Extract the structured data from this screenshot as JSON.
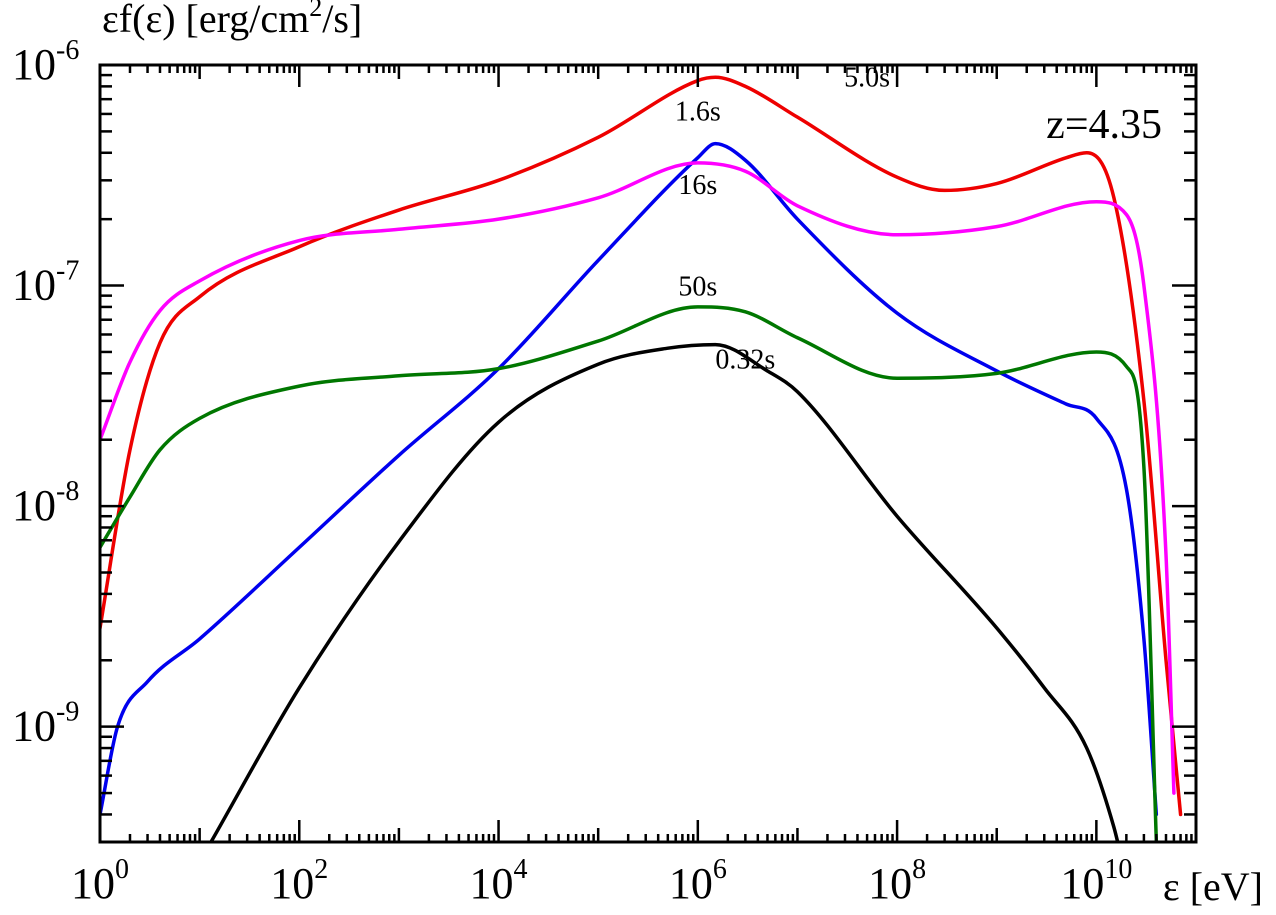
{
  "chart_data": {
    "type": "line",
    "ylabel": {
      "prefix": "εf(ε) [erg/cm",
      "sup": "2",
      "suffix": "/s]"
    },
    "xlabel": "ε [eV]",
    "annotation": "z=4.35",
    "x_scale": "log",
    "y_scale": "log",
    "xlim": [
      1,
      100000000000.0
    ],
    "ylim": [
      3e-10,
      1e-06
    ],
    "x_ticks": [
      {
        "base": "10",
        "exp": "0"
      },
      {
        "base": "10",
        "exp": "2"
      },
      {
        "base": "10",
        "exp": "4"
      },
      {
        "base": "10",
        "exp": "6"
      },
      {
        "base": "10",
        "exp": "8"
      },
      {
        "base": "10",
        "exp": "10"
      }
    ],
    "y_ticks": [
      {
        "base": "10",
        "exp": "-6"
      },
      {
        "base": "10",
        "exp": "-7"
      },
      {
        "base": "10",
        "exp": "-8"
      },
      {
        "base": "10",
        "exp": "-9"
      }
    ],
    "grid": false,
    "legend": "none",
    "series": [
      {
        "name": "0.32s",
        "color": "#000000",
        "x": [
          13,
          100,
          1000,
          10000,
          100000,
          500000,
          1500000,
          5000000,
          10000000,
          100000000,
          1000000000,
          3000000000,
          8000000000,
          15000000000,
          18000000000
        ],
        "y": [
          3e-10,
          1.5e-09,
          6.9e-09,
          2.4e-08,
          4.4e-08,
          5.2e-08,
          5.4e-08,
          4.1e-08,
          3.3e-08,
          9e-09,
          2.8e-09,
          1.5e-09,
          8e-10,
          3.5e-10,
          2.5e-10
        ]
      },
      {
        "name": "1.6s",
        "color": "#0000ee",
        "x": [
          1,
          1.5,
          3,
          10,
          100,
          1000,
          10000,
          100000,
          1000000,
          1500000,
          3000000,
          10000000,
          100000000,
          1000000000,
          5000000000,
          10000000000,
          20000000000,
          30000000000,
          40000000000
        ],
        "y": [
          4e-10,
          1e-09,
          1.6e-09,
          2.5e-09,
          6.5e-09,
          1.7e-08,
          4.2e-08,
          1.3e-07,
          3.8e-07,
          4.4e-07,
          3.7e-07,
          2e-07,
          7.5e-08,
          4.1e-08,
          2.9e-08,
          2.5e-08,
          1.2e-08,
          2.5e-09,
          4e-10
        ]
      },
      {
        "name": "5.0s",
        "color": "#ee0000",
        "x": [
          1,
          2,
          4,
          10,
          100,
          1000,
          10000,
          100000,
          1000000,
          1500000,
          3000000,
          10000000,
          100000000,
          300000000,
          1000000000,
          5000000000,
          8000000000,
          15000000000,
          30000000000,
          50000000000,
          70000000000
        ],
        "y": [
          2.8e-09,
          1.8e-08,
          5.5e-08,
          8.9e-08,
          1.5e-07,
          2.2e-07,
          3e-07,
          4.7e-07,
          8.5e-07,
          8.8e-07,
          8e-07,
          5.8e-07,
          3.1e-07,
          2.7e-07,
          2.9e-07,
          3.8e-07,
          4e-07,
          2.5e-07,
          3e-08,
          2e-09,
          4e-10
        ]
      },
      {
        "name": "16s",
        "color": "#ff00ff",
        "x": [
          1,
          2,
          4,
          10,
          100,
          1000,
          10000,
          100000,
          1000000,
          3000000,
          10000000,
          100000000,
          1000000000,
          10000000000,
          20000000000,
          30000000000,
          50000000000,
          60000000000
        ],
        "y": [
          2e-08,
          4.5e-08,
          7.7e-08,
          1.05e-07,
          1.6e-07,
          1.8e-07,
          2e-07,
          2.5e-07,
          3.6e-07,
          3.3e-07,
          2.3e-07,
          1.7e-07,
          1.85e-07,
          2.4e-07,
          2.1e-07,
          1e-07,
          6e-09,
          5e-10
        ]
      },
      {
        "name": "50s",
        "color": "#007700",
        "x": [
          1,
          2,
          4,
          10,
          100,
          1000,
          10000,
          100000,
          1000000,
          3000000,
          10000000,
          100000000,
          1000000000,
          10000000000,
          20000000000,
          30000000000,
          40000000000
        ],
        "y": [
          6.5e-09,
          1.1e-08,
          1.8e-08,
          2.5e-08,
          3.5e-08,
          3.9e-08,
          4.2e-08,
          5.6e-08,
          8e-08,
          7.6e-08,
          5.8e-08,
          3.8e-08,
          4e-08,
          5e-08,
          4.3e-08,
          1.5e-08,
          3e-10
        ]
      }
    ],
    "series_labels": [
      {
        "series": "5.0s",
        "text": "5.0s",
        "at_x": 50000000,
        "at_y": 8e-07
      },
      {
        "series": "1.6s",
        "text": "1.6s",
        "at_x": 1000000,
        "at_y": 5.6e-07
      },
      {
        "series": "16s",
        "text": "16s",
        "at_x": 1000000,
        "at_y": 2.6e-07
      },
      {
        "series": "50s",
        "text": "50s",
        "at_x": 1000000,
        "at_y": 9e-08
      },
      {
        "series": "0.32s",
        "text": "0.32s",
        "at_x": 3000000,
        "at_y": 4.2e-08
      }
    ]
  }
}
